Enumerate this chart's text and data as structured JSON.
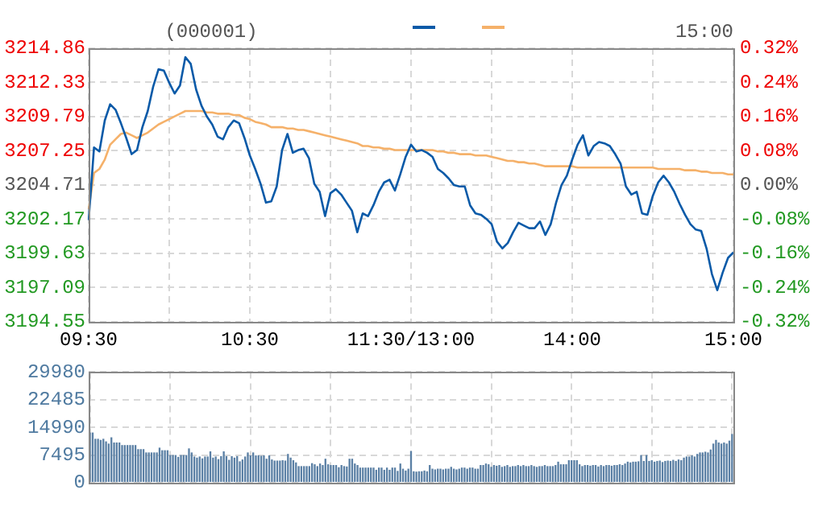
{
  "chart_data": [
    {
      "type": "line",
      "title": "(000001)",
      "annotations": [
        "15:00"
      ],
      "grid": true,
      "marker": "none",
      "line_style": "solid",
      "categories": [
        "09:30",
        null,
        null,
        null,
        null,
        null,
        null,
        null,
        null,
        null,
        null,
        null,
        null,
        null,
        null,
        null,
        null,
        null,
        null,
        null,
        null,
        null,
        null,
        null,
        null,
        null,
        null,
        null,
        null,
        null,
        "10:30",
        null,
        null,
        null,
        null,
        null,
        null,
        null,
        null,
        null,
        null,
        null,
        null,
        null,
        null,
        null,
        null,
        null,
        null,
        null,
        null,
        null,
        null,
        null,
        null,
        null,
        null,
        null,
        null,
        null,
        "11:30/13:00",
        null,
        null,
        null,
        null,
        null,
        null,
        null,
        null,
        null,
        null,
        null,
        null,
        null,
        null,
        null,
        null,
        null,
        null,
        null,
        null,
        null,
        null,
        null,
        null,
        null,
        null,
        null,
        null,
        null,
        "14:00",
        null,
        null,
        null,
        null,
        null,
        null,
        null,
        null,
        null,
        null,
        null,
        null,
        null,
        null,
        null,
        null,
        null,
        null,
        null,
        null,
        null,
        null,
        null,
        null,
        null,
        null,
        null,
        null,
        null,
        "15:00"
      ],
      "ylim": [
        3194.55,
        3214.86
      ],
      "yticks": [
        3194.55,
        3197.09,
        3199.63,
        3202.17,
        3204.71,
        3207.25,
        3209.79,
        3212.33,
        3214.86
      ],
      "y2lim": [
        -0.32,
        0.32
      ],
      "y2ticks": [
        {
          "value": -0.32,
          "label": "-0.32%"
        },
        {
          "value": -0.24,
          "label": "-0.24%"
        },
        {
          "value": -0.16,
          "label": "-0.16%"
        },
        {
          "value": -0.08,
          "label": "-0.08%"
        },
        {
          "value": 0,
          "label": "0.00%"
        },
        {
          "value": 0.08,
          "label": "0.08%"
        },
        {
          "value": 0.16,
          "label": "0.16%"
        },
        {
          "value": 0.24,
          "label": "0.24%"
        },
        {
          "value": 0.32,
          "label": "0.32%"
        }
      ],
      "series": [
        {
          "color": "#0a5aa8",
          "values": [
            3202.1,
            3207.5,
            3207.2,
            3209.5,
            3210.7,
            3210.3,
            3209.3,
            3208.2,
            3207.0,
            3207.3,
            3209.0,
            3210.2,
            3212.0,
            3213.3,
            3213.2,
            3212.3,
            3211.5,
            3212.1,
            3214.2,
            3213.7,
            3211.8,
            3210.6,
            3209.8,
            3209.2,
            3208.3,
            3208.1,
            3209.0,
            3209.5,
            3209.3,
            3208.2,
            3206.9,
            3205.9,
            3204.8,
            3203.4,
            3203.5,
            3204.6,
            3207.3,
            3208.5,
            3207.1,
            3207.3,
            3207.4,
            3206.7,
            3204.8,
            3204.2,
            3202.4,
            3204.1,
            3204.4,
            3204.0,
            3203.4,
            3202.8,
            3201.2,
            3202.6,
            3202.4,
            3203.2,
            3204.2,
            3204.9,
            3205.1,
            3204.3,
            3205.5,
            3206.8,
            3207.7,
            3207.2,
            3207.3,
            3207.1,
            3206.8,
            3205.9,
            3205.6,
            3205.2,
            3204.7,
            3204.6,
            3204.6,
            3203.2,
            3202.6,
            3202.5,
            3202.2,
            3201.8,
            3200.5,
            3200.0,
            3200.4,
            3201.2,
            3201.9,
            3201.7,
            3201.5,
            3201.5,
            3202.0,
            3201.0,
            3201.8,
            3203.4,
            3204.7,
            3205.4,
            3206.6,
            3207.7,
            3208.4,
            3206.9,
            3207.6,
            3207.9,
            3207.8,
            3207.6,
            3207.0,
            3206.3,
            3204.6,
            3204.0,
            3204.2,
            3202.6,
            3202.5,
            3203.9,
            3204.9,
            3205.4,
            3204.9,
            3204.2,
            3203.3,
            3202.5,
            3201.8,
            3201.4,
            3201.3,
            3200.0,
            3198.1,
            3196.9,
            3198.2,
            3199.3,
            3199.7
          ]
        },
        {
          "color": "#f5b16a",
          "values": [
            3202.9,
            3205.6,
            3205.9,
            3206.6,
            3207.7,
            3208.1,
            3208.5,
            3208.6,
            3208.4,
            3208.2,
            3208.4,
            3208.6,
            3208.9,
            3209.2,
            3209.4,
            3209.6,
            3209.8,
            3210.0,
            3210.2,
            3210.2,
            3210.2,
            3210.2,
            3210.1,
            3210.1,
            3210.0,
            3210.0,
            3210.0,
            3209.9,
            3209.9,
            3209.7,
            3209.6,
            3209.4,
            3209.3,
            3209.2,
            3209.0,
            3209.0,
            3209.0,
            3208.9,
            3208.9,
            3208.8,
            3208.8,
            3208.7,
            3208.6,
            3208.5,
            3208.4,
            3208.3,
            3208.2,
            3208.1,
            3208.0,
            3207.9,
            3207.8,
            3207.6,
            3207.6,
            3207.5,
            3207.5,
            3207.4,
            3207.4,
            3207.3,
            3207.3,
            3207.3,
            3207.3,
            3207.3,
            3207.3,
            3207.3,
            3207.3,
            3207.2,
            3207.2,
            3207.1,
            3207.1,
            3207.0,
            3207.0,
            3207.0,
            3206.9,
            3206.9,
            3206.9,
            3206.8,
            3206.7,
            3206.6,
            3206.5,
            3206.5,
            3206.4,
            3206.4,
            3206.3,
            3206.3,
            3206.2,
            3206.1,
            3206.1,
            3206.1,
            3206.1,
            3206.1,
            3206.1,
            3206.0,
            3206.0,
            3206.0,
            3206.0,
            3206.0,
            3206.0,
            3206.0,
            3206.0,
            3206.0,
            3206.0,
            3206.0,
            3206.0,
            3206.0,
            3206.0,
            3206.0,
            3205.9,
            3205.9,
            3205.9,
            3205.9,
            3205.9,
            3205.8,
            3205.8,
            3205.8,
            3205.7,
            3205.7,
            3205.6,
            3205.6,
            3205.6,
            3205.5,
            3205.5
          ]
        }
      ]
    },
    {
      "type": "bar",
      "color": "#5b80a5",
      "grid": true,
      "categories": [
        null,
        null,
        null,
        null,
        null,
        null,
        null,
        null,
        null,
        null,
        null,
        null,
        null,
        null,
        null,
        null,
        null,
        null,
        null,
        null,
        null,
        null,
        null,
        null,
        null,
        null,
        null,
        null,
        null,
        null,
        null,
        null,
        null,
        null,
        null,
        null,
        null,
        null,
        null,
        null,
        null,
        null,
        null,
        null,
        null,
        null,
        null,
        null,
        null,
        null,
        null,
        null,
        null,
        null,
        null,
        null,
        null,
        null,
        null,
        null,
        null,
        null,
        null,
        null,
        null,
        null,
        null,
        null,
        null,
        null,
        null,
        null,
        null,
        null,
        null,
        null,
        null,
        null,
        null,
        null,
        null,
        null,
        null,
        null,
        null,
        null,
        null,
        null,
        null,
        null,
        null,
        null,
        null,
        null,
        null,
        null,
        null,
        null,
        null,
        null,
        null,
        null,
        null,
        null,
        null,
        null,
        null,
        null,
        null,
        null,
        null,
        null,
        null,
        null,
        null,
        null,
        null,
        null,
        null,
        null,
        null,
        null,
        null,
        null,
        null,
        null,
        null,
        null,
        null,
        null,
        null,
        null,
        null,
        null,
        null,
        null,
        null,
        null,
        null,
        null,
        null,
        null,
        null,
        null,
        null,
        null,
        null,
        null,
        null,
        null,
        null,
        null,
        null,
        null,
        null,
        null,
        null,
        null,
        null,
        null,
        null,
        null,
        null,
        null,
        null,
        null,
        null,
        null,
        null,
        null,
        null,
        null,
        null,
        null,
        null,
        null,
        null,
        null,
        null,
        null,
        null,
        null,
        null,
        null,
        null,
        null,
        null,
        null,
        null,
        null,
        null,
        null,
        null,
        null,
        null,
        null,
        null,
        null,
        null,
        null,
        null,
        null,
        null,
        null,
        null,
        null,
        null,
        null,
        null,
        null,
        null,
        null,
        null,
        null,
        null,
        null,
        null,
        null,
        null,
        null,
        null,
        null,
        null,
        null,
        null,
        null,
        null,
        null,
        null,
        null,
        null,
        null,
        null,
        null,
        null,
        null,
        null,
        null,
        null,
        null,
        null
      ],
      "ylim": [
        0,
        29980
      ],
      "yticks": [
        0,
        7495,
        14990,
        22485,
        29980
      ],
      "values": [
        13600,
        13600,
        11900,
        11900,
        11600,
        11900,
        11200,
        10600,
        12300,
        10900,
        10900,
        10900,
        10200,
        10200,
        10200,
        10200,
        10200,
        10200,
        9100,
        9100,
        9100,
        8200,
        8200,
        8200,
        8200,
        8200,
        9500,
        8800,
        8800,
        8800,
        7500,
        7500,
        7500,
        7000,
        7500,
        7500,
        7500,
        9300,
        8200,
        7100,
        6800,
        7100,
        6600,
        7100,
        7100,
        8500,
        6800,
        7100,
        6400,
        7200,
        8500,
        7200,
        6200,
        7200,
        6800,
        7200,
        5800,
        6300,
        7100,
        8200,
        7400,
        8200,
        7400,
        7400,
        7300,
        7400,
        6500,
        7400,
        6300,
        6000,
        6000,
        6000,
        6100,
        6000,
        7800,
        6800,
        6100,
        5500,
        4500,
        4500,
        4500,
        4500,
        4500,
        5300,
        5000,
        4500,
        5200,
        4800,
        6500,
        5000,
        4800,
        4800,
        4800,
        4200,
        4800,
        4500,
        4400,
        6500,
        6500,
        5200,
        4800,
        4100,
        4100,
        4100,
        4100,
        4100,
        4100,
        3500,
        4100,
        4100,
        3500,
        4100,
        3500,
        4100,
        4100,
        3200,
        5200,
        3800,
        3300,
        3800,
        8600,
        3100,
        3000,
        3100,
        3100,
        3300,
        3100,
        4800,
        3800,
        3600,
        3800,
        3800,
        3600,
        3800,
        3800,
        4300,
        3800,
        3600,
        3800,
        4100,
        4100,
        3800,
        4100,
        4100,
        3800,
        3800,
        4800,
        4800,
        5200,
        5000,
        4300,
        4800,
        4600,
        4800,
        4300,
        4500,
        4800,
        4300,
        4500,
        4500,
        4800,
        4500,
        4800,
        4500,
        4500,
        4800,
        4500,
        4300,
        4500,
        4500,
        4800,
        4500,
        4500,
        4500,
        4800,
        5700,
        5000,
        5000,
        5000,
        6100,
        6100,
        6100,
        6100,
        5000,
        4500,
        4800,
        4800,
        4600,
        4800,
        4800,
        4400,
        4800,
        4500,
        4800,
        4800,
        4600,
        4800,
        4800,
        5000,
        4800,
        5200,
        5700,
        5500,
        5700,
        5700,
        5800,
        7500,
        5900,
        7500,
        5900,
        6100,
        5700,
        5900,
        6000,
        5600,
        5900,
        6000,
        5900,
        6200,
        5900,
        6300,
        6100,
        6800,
        7100,
        7100,
        7400,
        7100,
        7800,
        8200,
        8200,
        8400,
        8200,
        9000,
        10600,
        11600,
        10900,
        10600,
        10900,
        10600,
        11400,
        13200
      ]
    }
  ]
}
